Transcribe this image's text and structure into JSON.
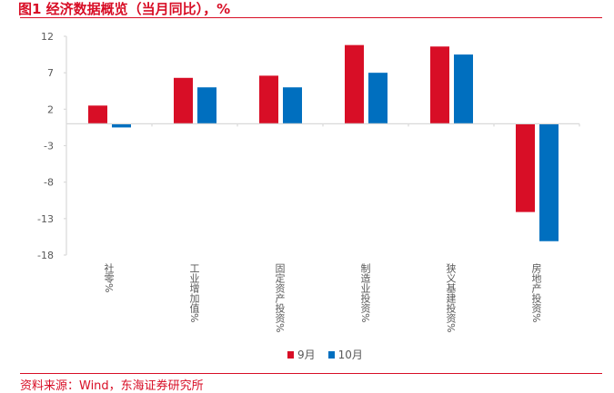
{
  "title": "图1  经济数据概览（当月同比），%",
  "source": "资料来源：Wind，东海证券研究所",
  "colors": {
    "sep": "#d80e26",
    "oct": "#006fbf",
    "axis": "#d9d9d9",
    "text": "#595959",
    "title": "#d80e26"
  },
  "chart_data": {
    "type": "bar",
    "title": "图1  经济数据概览（当月同比），%",
    "categories": [
      "社零%",
      "工业增加值%",
      "固定资产投资%",
      "制造业投资%",
      "狭义基建投资%",
      "房地产投资%"
    ],
    "series": [
      {
        "name": "9月",
        "values": [
          2.5,
          6.3,
          6.6,
          10.8,
          10.6,
          -12.1
        ]
      },
      {
        "name": "10月",
        "values": [
          -0.5,
          5.0,
          5.0,
          7.0,
          9.5,
          -16.1
        ]
      }
    ],
    "yticks": [
      "12",
      "7",
      "2",
      "-3",
      "-8",
      "-13",
      "-18"
    ],
    "ylim": [
      -18,
      12
    ],
    "grid": false,
    "legend": "bottom"
  }
}
